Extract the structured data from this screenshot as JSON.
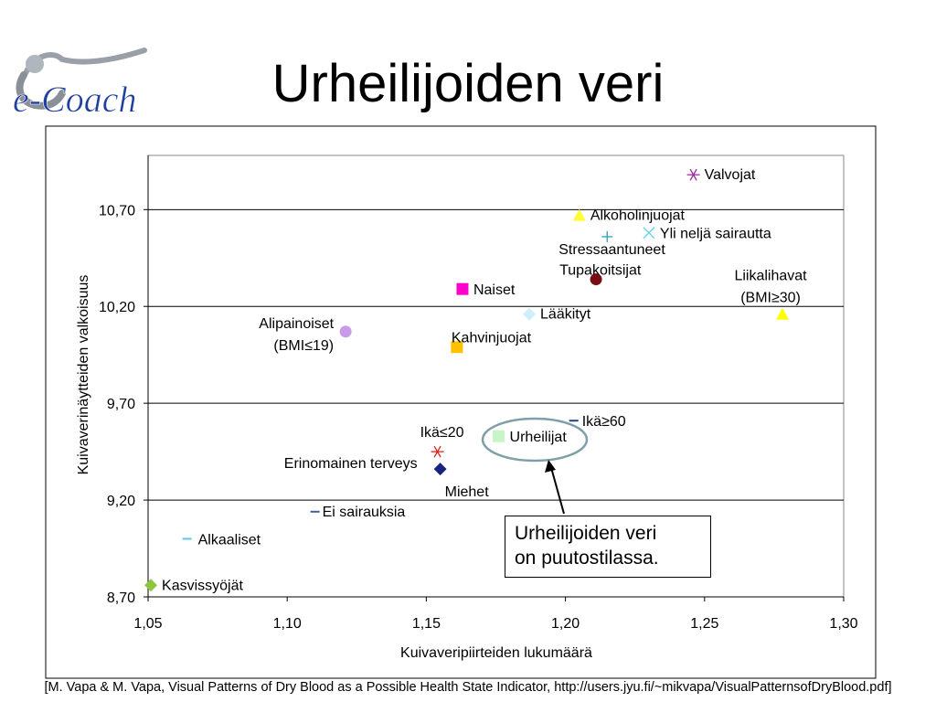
{
  "slide": {
    "title": "Urheilijoiden veri",
    "logo_text": "e-Coach",
    "callout_lines": [
      "Urheilijoiden veri",
      "on puutostilassa."
    ],
    "citation": "[M. Vapa & M. Vapa, Visual Patterns of Dry Blood as a Possible Health State Indicator, http://users.jyu.fi/~mikvapa/VisualPatternsofDryBlood.pdf]"
  },
  "colors": {
    "grid": "#000000",
    "highlight_ellipse": "#7f9fa8",
    "logo_blue": "#1f3fa0"
  },
  "chart_data": {
    "type": "scatter",
    "xlabel": "Kuivaveripiirteiden lukumäärä",
    "ylabel": "Kuivaverinäytteiden valkoisuus",
    "xlim": [
      1.05,
      1.3
    ],
    "ylim": [
      8.7,
      10.98
    ],
    "xticks": [
      "1,05",
      "1,10",
      "1,15",
      "1,20",
      "1,25",
      "1,30"
    ],
    "xtick_values": [
      1.05,
      1.1,
      1.15,
      1.2,
      1.25,
      1.3
    ],
    "yticks": [
      "8,70",
      "9,20",
      "9,70",
      "10,20",
      "10,70"
    ],
    "ytick_values": [
      8.7,
      9.2,
      9.7,
      10.2,
      10.7
    ],
    "grid": "horizontal",
    "highlighted": "Urheilijat",
    "points": [
      {
        "label": "Valvojat",
        "x": 1.246,
        "y": 10.88,
        "marker": "asterisk",
        "color": "#9a2fa0"
      },
      {
        "label": "Alkoholinjuojat",
        "x": 1.205,
        "y": 10.67,
        "marker": "triangle",
        "color": "#ffff33"
      },
      {
        "label": "Yli neljä sairautta",
        "x": 1.23,
        "y": 10.58,
        "marker": "x",
        "color": "#5fd3e6"
      },
      {
        "label": "Stressaantuneet",
        "x": 1.215,
        "y": 10.56,
        "marker": "plus",
        "color": "#2f9fb8"
      },
      {
        "label": "Tupakoitsijat",
        "x": 1.211,
        "y": 10.34,
        "marker": "circle",
        "color": "#7a0d14"
      },
      {
        "label": "Liikalihavat\n(BMI≥30)",
        "x": 1.278,
        "y": 10.16,
        "marker": "triangle",
        "color": "#ffff00"
      },
      {
        "label": "Naiset",
        "x": 1.163,
        "y": 10.29,
        "marker": "square",
        "color": "#ff00cc"
      },
      {
        "label": "Lääkityt",
        "x": 1.187,
        "y": 10.16,
        "marker": "diamond",
        "color": "#cdeefa"
      },
      {
        "label": "Alipainoiset\n(BMI≤19)",
        "x": 1.121,
        "y": 10.07,
        "marker": "circle",
        "color": "#c79be8"
      },
      {
        "label": "Kahvinjuojat",
        "x": 1.161,
        "y": 9.99,
        "marker": "square",
        "color": "#ffc000"
      },
      {
        "label": "Ikä≥60",
        "x": 1.203,
        "y": 9.61,
        "marker": "dash",
        "color": "#1f3f8f"
      },
      {
        "label": "Urheilijat",
        "x": 1.176,
        "y": 9.53,
        "marker": "square",
        "color": "#c6f5c6"
      },
      {
        "label": "Ikä≤20",
        "x": 1.154,
        "y": 9.45,
        "marker": "asterisk",
        "color": "#e02020"
      },
      {
        "label": "Erinomainen terveys",
        "x": 1.155,
        "y": 9.36,
        "marker": "diamond",
        "color": "#1a237e"
      },
      {
        "label": "Miehet",
        "x": 1.155,
        "y": 9.36,
        "marker": "none",
        "color": "#1a237e"
      },
      {
        "label": "Ei sairauksia",
        "x": 1.11,
        "y": 9.14,
        "marker": "dash",
        "color": "#3f5f9f"
      },
      {
        "label": "Alkaaliset",
        "x": 1.064,
        "y": 9.0,
        "marker": "dash",
        "color": "#5fc3e6"
      },
      {
        "label": "Kasvissyöjät",
        "x": 1.051,
        "y": 8.76,
        "marker": "diamond",
        "color": "#8cc63f"
      }
    ]
  }
}
